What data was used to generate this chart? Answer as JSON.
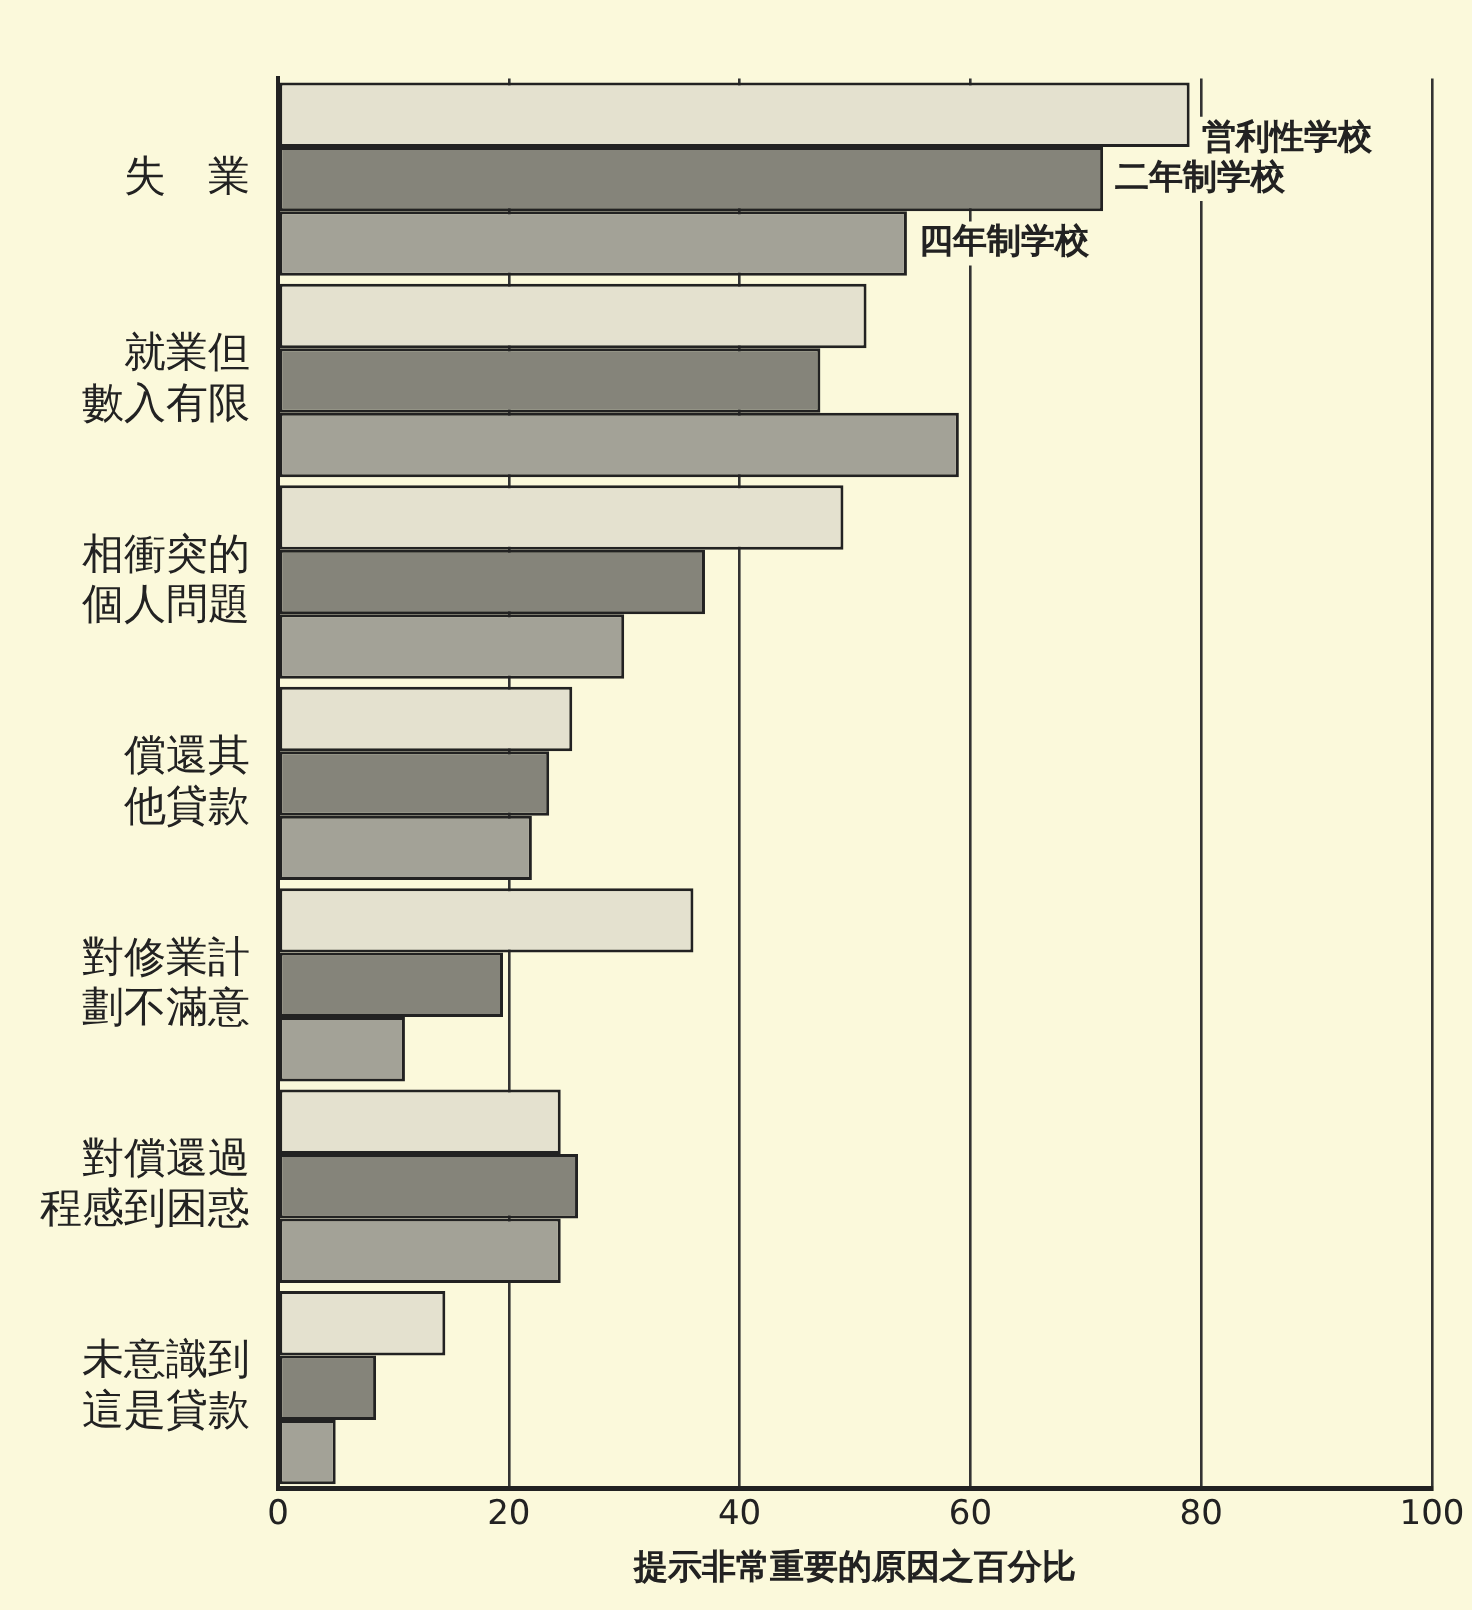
{
  "chart_data": {
    "type": "bar",
    "orientation": "horizontal",
    "xlabel": "提示非常重要的原因之百分比",
    "categories": [
      "失　業",
      "就業但數入有限",
      "相衝突的個人問題",
      "償還其他貸款",
      "對修業計劃不滿意",
      "對償還過程感到困惑",
      "未意識到這是貸款"
    ],
    "series": [
      {
        "name": "営利性学校",
        "color": "#e4e1cf",
        "values": [
          79,
          51,
          49,
          25.5,
          36,
          24.5,
          14.5
        ]
      },
      {
        "name": "二年制学校",
        "color": "#85847a",
        "values": [
          71.5,
          47,
          37,
          23.5,
          19.5,
          26,
          8.5
        ]
      },
      {
        "name": "四年制学校",
        "color": "#a3a297",
        "values": [
          54.5,
          59,
          30,
          22,
          11,
          24.5,
          5
        ]
      }
    ],
    "xlim": [
      0,
      100
    ],
    "xticks": [
      0,
      20,
      40,
      60,
      80,
      100
    ],
    "grid": "x"
  }
}
